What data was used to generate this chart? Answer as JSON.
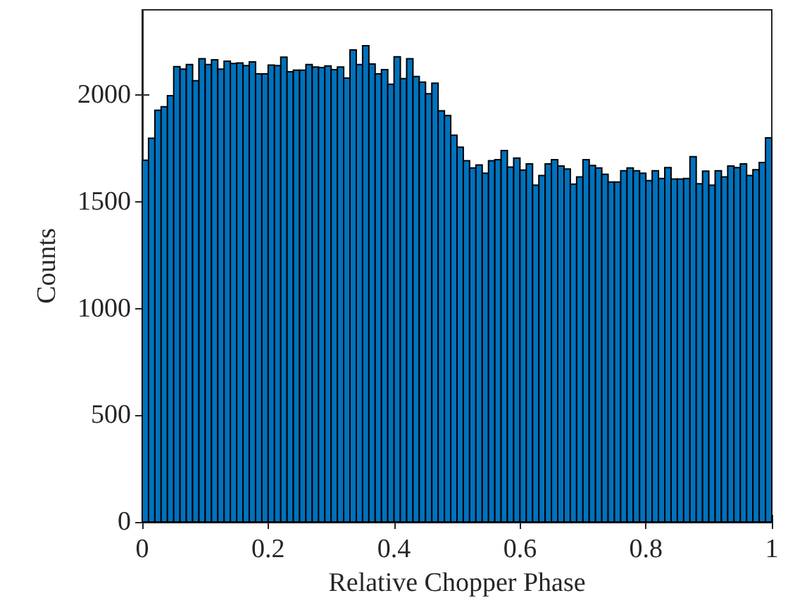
{
  "chart_data": {
    "type": "histogram",
    "xlabel": "Relative Chopper Phase",
    "ylabel": "Counts",
    "color": "#0072bd",
    "bins": [
      0,
      0.01,
      0.02,
      0.03,
      0.04,
      0.05,
      0.06,
      0.07,
      0.08,
      0.09,
      0.1,
      0.11,
      0.12,
      0.13,
      0.14,
      0.15,
      0.16,
      0.17,
      0.18,
      0.19,
      0.2,
      0.21,
      0.22,
      0.23,
      0.24,
      0.25,
      0.26,
      0.27,
      0.28,
      0.29,
      0.3,
      0.31,
      0.32,
      0.33,
      0.34,
      0.35,
      0.36,
      0.37,
      0.38,
      0.39,
      0.4,
      0.41,
      0.42,
      0.43,
      0.44,
      0.45,
      0.46,
      0.47,
      0.48,
      0.49,
      0.5,
      0.51,
      0.52,
      0.53,
      0.54,
      0.55,
      0.56,
      0.57,
      0.58,
      0.59,
      0.6,
      0.61,
      0.62,
      0.63,
      0.64,
      0.65,
      0.66,
      0.67,
      0.68,
      0.69,
      0.7,
      0.71,
      0.72,
      0.73,
      0.74,
      0.75,
      0.76,
      0.77,
      0.78,
      0.79,
      0.8,
      0.81,
      0.82,
      0.83,
      0.84,
      0.85,
      0.86,
      0.87,
      0.88,
      0.89,
      0.9,
      0.91,
      0.92,
      0.93,
      0.94,
      0.95,
      0.96,
      0.97,
      0.98,
      0.99,
      1
    ],
    "values": [
      1695,
      1798,
      1929,
      1946,
      1998,
      2134,
      2122,
      2144,
      2068,
      2171,
      2144,
      2166,
      2122,
      2159,
      2149,
      2151,
      2139,
      2156,
      2100,
      2100,
      2141,
      2139,
      2178,
      2110,
      2117,
      2117,
      2144,
      2132,
      2130,
      2137,
      2120,
      2132,
      2080,
      2212,
      2144,
      2232,
      2146,
      2100,
      2120,
      2051,
      2180,
      2078,
      2171,
      2088,
      2061,
      2007,
      2056,
      1927,
      1905,
      1812,
      1756,
      1693,
      1659,
      1673,
      1634,
      1693,
      1698,
      1741,
      1663,
      1705,
      1649,
      1678,
      1578,
      1624,
      1678,
      1698,
      1668,
      1654,
      1583,
      1617,
      1698,
      1671,
      1659,
      1629,
      1593,
      1593,
      1646,
      1659,
      1646,
      1634,
      1600,
      1646,
      1610,
      1661,
      1607,
      1607,
      1610,
      1712,
      1585,
      1644,
      1578,
      1646,
      1617,
      1668,
      1661,
      1678,
      1624,
      1651,
      1685,
      1800
    ],
    "xlim": [
      0,
      1
    ],
    "xticks": [
      0,
      0.2,
      0.4,
      0.6,
      0.8,
      1
    ],
    "ylim": [
      0,
      2400
    ],
    "yticks": [
      0,
      500,
      1000,
      1500,
      2000
    ],
    "grid": false
  }
}
